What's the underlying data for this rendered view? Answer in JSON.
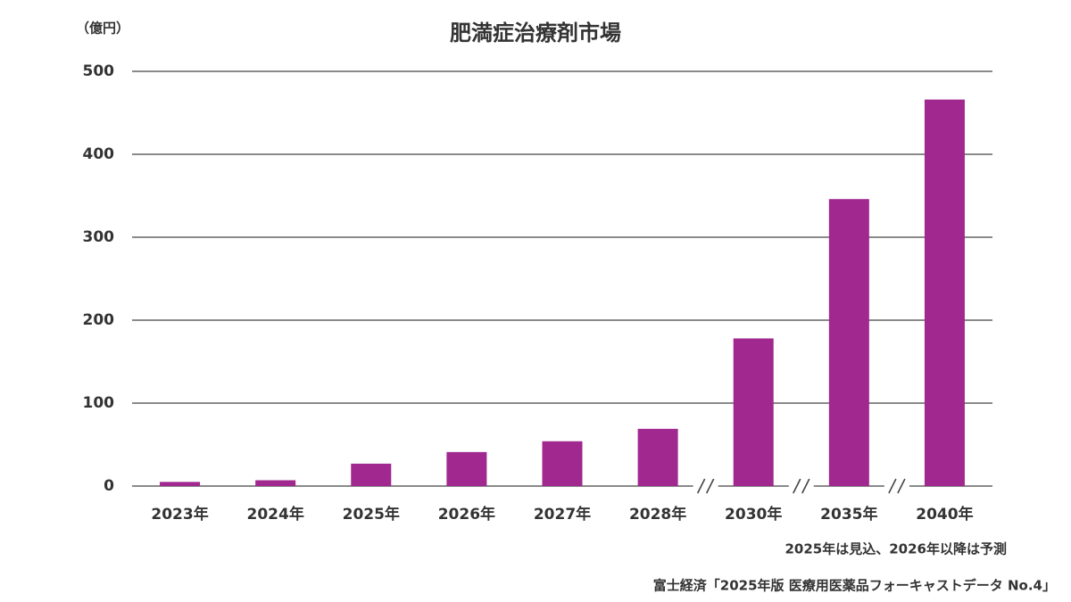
{
  "chart_data": {
    "type": "bar",
    "title": "肥満症治療剤市場",
    "y_label": "（億円）",
    "categories": [
      "2023年",
      "2024年",
      "2025年",
      "2026年",
      "2027年",
      "2028年",
      "2030年",
      "2035年",
      "2040年"
    ],
    "values": [
      5,
      7,
      27,
      41,
      54,
      69,
      178,
      346,
      466
    ],
    "color": "#a0288f",
    "ylim": [
      0,
      500
    ],
    "yticks": [
      0,
      100,
      200,
      300,
      400,
      500
    ],
    "grid": true,
    "note": "2025年は見込、2026年以降は予測",
    "source": "富士経済「2025年版 医療用医薬品フォーキャストデータ No.4」"
  }
}
